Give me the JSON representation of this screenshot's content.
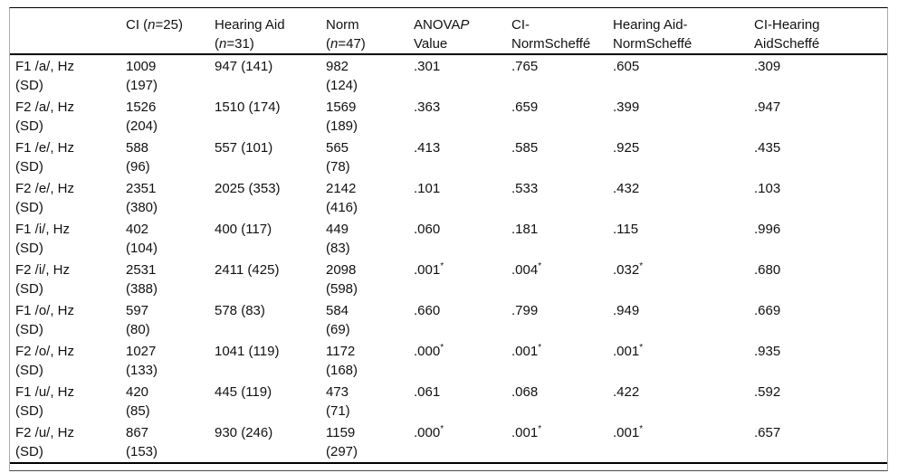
{
  "table": {
    "headers": {
      "empty": "",
      "ci": {
        "pre": "CI (",
        "nvar": "n",
        "post": "=25)"
      },
      "hearing_aid": {
        "line1": "Hearing Aid",
        "pre": "(",
        "nvar": "n",
        "post": "=31)"
      },
      "norm": {
        "line1": "Norm",
        "pre": "(",
        "nvar": "n",
        "post": "=47)"
      },
      "anova": {
        "pre": "ANOVA",
        "pvar": "P",
        "line2": "Value"
      },
      "ci_norm": {
        "line1": "CI-",
        "line2": "NormScheffé"
      },
      "ha_norm": {
        "line1": "Hearing Aid-",
        "line2": "NormScheffé"
      },
      "ci_ha": {
        "line1": "CI-Hearing",
        "line2": "AidScheffé"
      }
    },
    "rows": [
      {
        "label": "F1 /a/, Hz",
        "sd": "(SD)",
        "ci": "1009",
        "ci_sd": "(197)",
        "hearing_aid": "947 (141)",
        "norm": "982",
        "norm_sd": "(124)",
        "anova_p": ".301",
        "ci_norm": ".765",
        "ha_norm": ".605",
        "ci_ha": ".309"
      },
      {
        "label": "F2 /a/, Hz",
        "sd": "(SD)",
        "ci": "1526",
        "ci_sd": "(204)",
        "hearing_aid": "1510 (174)",
        "norm": "1569",
        "norm_sd": "(189)",
        "anova_p": ".363",
        "ci_norm": ".659",
        "ha_norm": ".399",
        "ci_ha": ".947"
      },
      {
        "label": "F1 /e/, Hz",
        "sd": "(SD)",
        "ci": "588",
        "ci_sd": "(96)",
        "hearing_aid": "557 (101)",
        "norm": "565",
        "norm_sd": "(78)",
        "anova_p": ".413",
        "ci_norm": ".585",
        "ha_norm": ".925",
        "ci_ha": ".435"
      },
      {
        "label": "F2 /e/, Hz",
        "sd": "(SD)",
        "ci": "2351",
        "ci_sd": "(380)",
        "hearing_aid": "2025 (353)",
        "norm": "2142",
        "norm_sd": "(416)",
        "anova_p": ".101",
        "ci_norm": ".533",
        "ha_norm": ".432",
        "ci_ha": ".103"
      },
      {
        "label": "F1 /i/, Hz",
        "sd": "(SD)",
        "ci": "402",
        "ci_sd": "(104)",
        "hearing_aid": "400 (117)",
        "norm": "449",
        "norm_sd": "(83)",
        "anova_p": ".060",
        "ci_norm": ".181",
        "ha_norm": ".115",
        "ci_ha": ".996"
      },
      {
        "label": "F2 /i/, Hz",
        "sd": "(SD)",
        "ci": "2531",
        "ci_sd": "(388)",
        "hearing_aid": "2411 (425)",
        "norm": "2098",
        "norm_sd": "(598)",
        "anova_p": ".001*",
        "ci_norm": ".004*",
        "ha_norm": ".032*",
        "ci_ha": ".680"
      },
      {
        "label": "F1 /o/, Hz",
        "sd": "(SD)",
        "ci": "597",
        "ci_sd": "(80)",
        "hearing_aid": "578 (83)",
        "norm": "584",
        "norm_sd": "(69)",
        "anova_p": ".660",
        "ci_norm": ".799",
        "ha_norm": ".949",
        "ci_ha": ".669"
      },
      {
        "label": "F2 /o/, Hz",
        "sd": "(SD)",
        "ci": "1027",
        "ci_sd": "(133)",
        "hearing_aid": "1041 (119)",
        "norm": "1172",
        "norm_sd": "(168)",
        "anova_p": ".000*",
        "ci_norm": ".001*",
        "ha_norm": ".001*",
        "ci_ha": ".935"
      },
      {
        "label": "F1 /u/, Hz",
        "sd": "(SD)",
        "ci": "420",
        "ci_sd": "(85)",
        "hearing_aid": "445 (119)",
        "norm": "473",
        "norm_sd": "(71)",
        "anova_p": ".061",
        "ci_norm": ".068",
        "ha_norm": ".422",
        "ci_ha": ".592"
      },
      {
        "label": "F2 /u/, Hz",
        "sd": "(SD)",
        "ci": "867",
        "ci_sd": "(153)",
        "hearing_aid": "930 (246)",
        "norm": "1159",
        "norm_sd": "(297)",
        "anova_p": ".000*",
        "ci_norm": ".001*",
        "ha_norm": ".001*",
        "ci_ha": ".657"
      }
    ],
    "significance_marker": "*"
  }
}
